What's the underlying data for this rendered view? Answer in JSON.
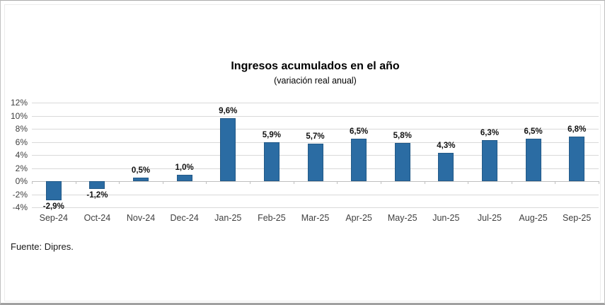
{
  "panel": {
    "source": "Fuente: Dipres."
  },
  "chart_data": {
    "type": "bar",
    "title": "Ingresos acumulados en el año",
    "subtitle": "(variación real anual)",
    "categories": [
      "Sep-24",
      "Oct-24",
      "Nov-24",
      "Dec-24",
      "Jan-25",
      "Feb-25",
      "Mar-25",
      "Apr-25",
      "May-25",
      "Jun-25",
      "Jul-25",
      "Aug-25",
      "Sep-25"
    ],
    "values": [
      -2.9,
      -1.2,
      0.5,
      1.0,
      9.6,
      5.9,
      5.7,
      6.5,
      5.8,
      4.3,
      6.3,
      6.5,
      6.8
    ],
    "data_labels": [
      "-2,9%",
      "-1,2%",
      "0,5%",
      "1,0%",
      "9,6%",
      "5,9%",
      "5,7%",
      "6,5%",
      "5,8%",
      "4,3%",
      "6,3%",
      "6,5%",
      "6,8%"
    ],
    "xlabel": "",
    "ylabel": "",
    "ylim": [
      -4,
      12
    ],
    "ytick_step": 2,
    "ytick_labels": [
      "12%",
      "10%",
      "8%",
      "6%",
      "4%",
      "2%",
      "0%",
      "-2%",
      "-4%"
    ],
    "grid": true,
    "legend_position": "none",
    "bar_color": "#2b6ca3",
    "bar_border_color": "#235a88",
    "gridline_color": "#d9d9d9",
    "axis_color": "#bfbfbf"
  }
}
